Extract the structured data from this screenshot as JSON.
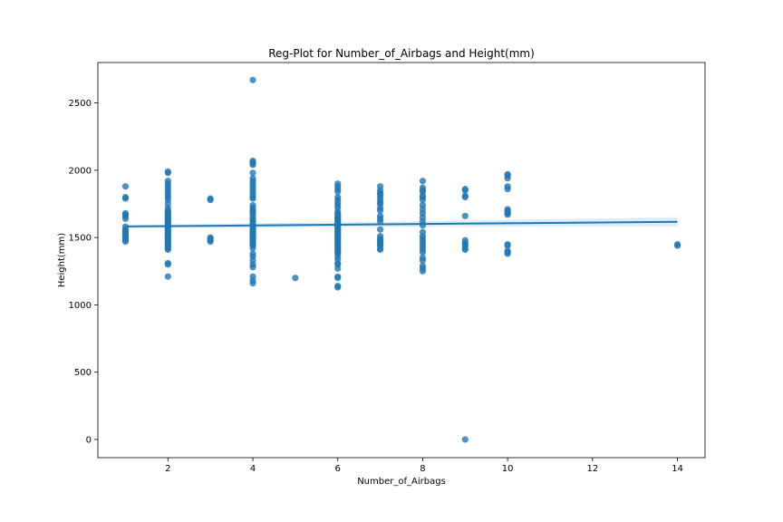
{
  "chart_data": {
    "type": "scatter",
    "title": "Reg-Plot for Number_of_Airbags and Height(mm)",
    "xlabel": "Number_of_Airbags",
    "ylabel": "Height(mm)",
    "xlim": [
      0.35,
      14.65
    ],
    "ylim": [
      -135,
      2800
    ],
    "xticks": [
      2,
      4,
      6,
      8,
      10,
      12,
      14
    ],
    "yticks": [
      0,
      500,
      1000,
      1500,
      2000,
      2500
    ],
    "grid": false,
    "colors": {
      "points": "#1f77b4",
      "line": "#1f77b4",
      "band": "#1f77b4"
    },
    "points": [
      [
        1,
        1880
      ],
      [
        1,
        1800
      ],
      [
        1,
        1790
      ],
      [
        1,
        1680
      ],
      [
        1,
        1670
      ],
      [
        1,
        1660
      ],
      [
        1,
        1640
      ],
      [
        1,
        1580
      ],
      [
        1,
        1560
      ],
      [
        1,
        1550
      ],
      [
        1,
        1540
      ],
      [
        1,
        1530
      ],
      [
        1,
        1520
      ],
      [
        1,
        1510
      ],
      [
        1,
        1500
      ],
      [
        1,
        1490
      ],
      [
        1,
        1480
      ],
      [
        1,
        1470
      ],
      [
        2,
        1990
      ],
      [
        2,
        1980
      ],
      [
        2,
        1920
      ],
      [
        2,
        1900
      ],
      [
        2,
        1880
      ],
      [
        2,
        1860
      ],
      [
        2,
        1840
      ],
      [
        2,
        1820
      ],
      [
        2,
        1800
      ],
      [
        2,
        1780
      ],
      [
        2,
        1750
      ],
      [
        2,
        1720
      ],
      [
        2,
        1700
      ],
      [
        2,
        1690
      ],
      [
        2,
        1680
      ],
      [
        2,
        1670
      ],
      [
        2,
        1660
      ],
      [
        2,
        1650
      ],
      [
        2,
        1640
      ],
      [
        2,
        1630
      ],
      [
        2,
        1620
      ],
      [
        2,
        1610
      ],
      [
        2,
        1600
      ],
      [
        2,
        1590
      ],
      [
        2,
        1580
      ],
      [
        2,
        1570
      ],
      [
        2,
        1560
      ],
      [
        2,
        1550
      ],
      [
        2,
        1540
      ],
      [
        2,
        1530
      ],
      [
        2,
        1520
      ],
      [
        2,
        1510
      ],
      [
        2,
        1500
      ],
      [
        2,
        1490
      ],
      [
        2,
        1480
      ],
      [
        2,
        1470
      ],
      [
        2,
        1460
      ],
      [
        2,
        1450
      ],
      [
        2,
        1440
      ],
      [
        2,
        1430
      ],
      [
        2,
        1420
      ],
      [
        2,
        1410
      ],
      [
        2,
        1310
      ],
      [
        2,
        1300
      ],
      [
        2,
        1210
      ],
      [
        3,
        1790
      ],
      [
        3,
        1780
      ],
      [
        3,
        1500
      ],
      [
        3,
        1490
      ],
      [
        3,
        1480
      ],
      [
        3,
        1470
      ],
      [
        4,
        2670
      ],
      [
        4,
        2070
      ],
      [
        4,
        2060
      ],
      [
        4,
        2050
      ],
      [
        4,
        2040
      ],
      [
        4,
        1980
      ],
      [
        4,
        1940
      ],
      [
        4,
        1920
      ],
      [
        4,
        1900
      ],
      [
        4,
        1880
      ],
      [
        4,
        1860
      ],
      [
        4,
        1840
      ],
      [
        4,
        1820
      ],
      [
        4,
        1800
      ],
      [
        4,
        1790
      ],
      [
        4,
        1740
      ],
      [
        4,
        1720
      ],
      [
        4,
        1700
      ],
      [
        4,
        1690
      ],
      [
        4,
        1680
      ],
      [
        4,
        1660
      ],
      [
        4,
        1640
      ],
      [
        4,
        1630
      ],
      [
        4,
        1620
      ],
      [
        4,
        1600
      ],
      [
        4,
        1590
      ],
      [
        4,
        1580
      ],
      [
        4,
        1570
      ],
      [
        4,
        1560
      ],
      [
        4,
        1550
      ],
      [
        4,
        1540
      ],
      [
        4,
        1530
      ],
      [
        4,
        1520
      ],
      [
        4,
        1510
      ],
      [
        4,
        1500
      ],
      [
        4,
        1490
      ],
      [
        4,
        1480
      ],
      [
        4,
        1470
      ],
      [
        4,
        1460
      ],
      [
        4,
        1450
      ],
      [
        4,
        1440
      ],
      [
        4,
        1420
      ],
      [
        4,
        1380
      ],
      [
        4,
        1360
      ],
      [
        4,
        1330
      ],
      [
        4,
        1300
      ],
      [
        4,
        1280
      ],
      [
        4,
        1210
      ],
      [
        4,
        1180
      ],
      [
        4,
        1160
      ],
      [
        5,
        1200
      ],
      [
        6,
        1900
      ],
      [
        6,
        1880
      ],
      [
        6,
        1860
      ],
      [
        6,
        1840
      ],
      [
        6,
        1800
      ],
      [
        6,
        1780
      ],
      [
        6,
        1760
      ],
      [
        6,
        1740
      ],
      [
        6,
        1720
      ],
      [
        6,
        1690
      ],
      [
        6,
        1680
      ],
      [
        6,
        1670
      ],
      [
        6,
        1660
      ],
      [
        6,
        1650
      ],
      [
        6,
        1640
      ],
      [
        6,
        1630
      ],
      [
        6,
        1620
      ],
      [
        6,
        1610
      ],
      [
        6,
        1600
      ],
      [
        6,
        1590
      ],
      [
        6,
        1580
      ],
      [
        6,
        1570
      ],
      [
        6,
        1560
      ],
      [
        6,
        1550
      ],
      [
        6,
        1540
      ],
      [
        6,
        1530
      ],
      [
        6,
        1520
      ],
      [
        6,
        1510
      ],
      [
        6,
        1500
      ],
      [
        6,
        1490
      ],
      [
        6,
        1480
      ],
      [
        6,
        1470
      ],
      [
        6,
        1460
      ],
      [
        6,
        1450
      ],
      [
        6,
        1440
      ],
      [
        6,
        1430
      ],
      [
        6,
        1420
      ],
      [
        6,
        1410
      ],
      [
        6,
        1400
      ],
      [
        6,
        1390
      ],
      [
        6,
        1380
      ],
      [
        6,
        1360
      ],
      [
        6,
        1340
      ],
      [
        6,
        1310
      ],
      [
        6,
        1300
      ],
      [
        6,
        1270
      ],
      [
        6,
        1210
      ],
      [
        6,
        1200
      ],
      [
        6,
        1140
      ],
      [
        6,
        1130
      ],
      [
        7,
        1880
      ],
      [
        7,
        1850
      ],
      [
        7,
        1830
      ],
      [
        7,
        1820
      ],
      [
        7,
        1800
      ],
      [
        7,
        1780
      ],
      [
        7,
        1760
      ],
      [
        7,
        1750
      ],
      [
        7,
        1720
      ],
      [
        7,
        1700
      ],
      [
        7,
        1660
      ],
      [
        7,
        1640
      ],
      [
        7,
        1620
      ],
      [
        7,
        1560
      ],
      [
        7,
        1510
      ],
      [
        7,
        1490
      ],
      [
        7,
        1480
      ],
      [
        7,
        1470
      ],
      [
        7,
        1460
      ],
      [
        7,
        1450
      ],
      [
        7,
        1440
      ],
      [
        7,
        1420
      ],
      [
        7,
        1410
      ],
      [
        8,
        1920
      ],
      [
        8,
        1870
      ],
      [
        8,
        1850
      ],
      [
        8,
        1840
      ],
      [
        8,
        1810
      ],
      [
        8,
        1800
      ],
      [
        8,
        1780
      ],
      [
        8,
        1740
      ],
      [
        8,
        1710
      ],
      [
        8,
        1680
      ],
      [
        8,
        1650
      ],
      [
        8,
        1620
      ],
      [
        8,
        1590
      ],
      [
        8,
        1540
      ],
      [
        8,
        1510
      ],
      [
        8,
        1490
      ],
      [
        8,
        1470
      ],
      [
        8,
        1450
      ],
      [
        8,
        1430
      ],
      [
        8,
        1410
      ],
      [
        8,
        1390
      ],
      [
        8,
        1350
      ],
      [
        8,
        1330
      ],
      [
        8,
        1290
      ],
      [
        8,
        1270
      ],
      [
        8,
        1250
      ],
      [
        9,
        1860
      ],
      [
        9,
        1850
      ],
      [
        9,
        1810
      ],
      [
        9,
        1800
      ],
      [
        9,
        1660
      ],
      [
        9,
        1480
      ],
      [
        9,
        1460
      ],
      [
        9,
        1450
      ],
      [
        9,
        1440
      ],
      [
        9,
        1420
      ],
      [
        9,
        1410
      ],
      [
        9,
        0
      ],
      [
        10,
        1970
      ],
      [
        10,
        1960
      ],
      [
        10,
        1940
      ],
      [
        10,
        1880
      ],
      [
        10,
        1860
      ],
      [
        10,
        1710
      ],
      [
        10,
        1700
      ],
      [
        10,
        1690
      ],
      [
        10,
        1680
      ],
      [
        10,
        1670
      ],
      [
        10,
        1450
      ],
      [
        10,
        1440
      ],
      [
        10,
        1400
      ],
      [
        10,
        1390
      ],
      [
        10,
        1380
      ],
      [
        14,
        1450
      ],
      [
        14,
        1440
      ]
    ],
    "regression": {
      "x": [
        1,
        14
      ],
      "y": [
        1582,
        1617
      ],
      "ci_low": [
        1572,
        1587
      ],
      "ci_high": [
        1592,
        1647
      ]
    }
  }
}
